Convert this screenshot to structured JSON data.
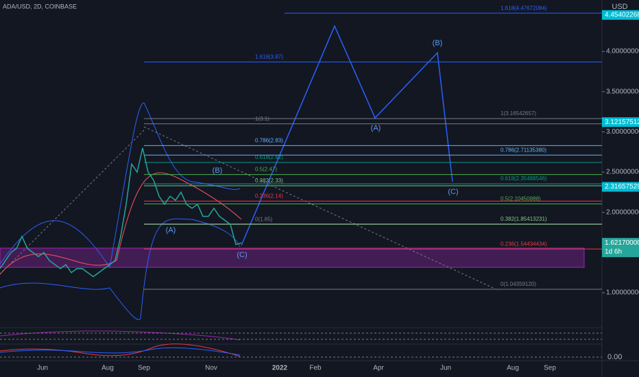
{
  "chart_data": {
    "type": "line",
    "title": "ADA/USD, 2D, COINBASE",
    "currency": "USD",
    "values": [
      1.3,
      1.4,
      1.5,
      1.55,
      1.7,
      1.55,
      1.5,
      1.45,
      1.5,
      1.4,
      1.35,
      1.3,
      1.35,
      1.25,
      1.3,
      1.3,
      1.25,
      1.2,
      1.25,
      1.3,
      1.35,
      1.4,
      1.7,
      2.1,
      2.6,
      2.5,
      2.8,
      2.5,
      2.4,
      2.2,
      2.1,
      2.2,
      2.15,
      2.25,
      2.1,
      2.05,
      2.1,
      1.95,
      1.95,
      2.05,
      1.95,
      1.9,
      1.85,
      1.6,
      1.62
    ],
    "color": "#26a69a",
    "ylim": [
      0.6,
      4.64
    ],
    "yticks": [
      {
        "value": 4,
        "label": "4.00000000"
      },
      {
        "value": 3.5,
        "label": "3.50000000"
      },
      {
        "value": 3,
        "label": "3.00000000"
      },
      {
        "value": 2.5,
        "label": "2.50000000"
      },
      {
        "value": 2,
        "label": "2.00000000"
      },
      {
        "value": 1,
        "label": "1.00000000"
      }
    ],
    "xticks": [
      "Jun",
      "Aug",
      "Sep",
      "Nov",
      "2022",
      "Feb",
      "Apr",
      "Jun",
      "Aug",
      "Sep"
    ],
    "price_tags": [
      {
        "value": 4.45402268,
        "color": "#00bcd4"
      },
      {
        "value": 3.12157512,
        "color": "#00bcd4"
      },
      {
        "value": 2.31657529,
        "color": "#00bcd4"
      },
      {
        "value": {
          "value": 1.6217,
          "label": "1.62170000"
        },
        "countdown": "1d 6h",
        "color": "#26a69a"
      }
    ],
    "fib_left": [
      {
        "label": "1.618(3.87)",
        "value": 3.87,
        "color": "#2962ff"
      },
      {
        "label": "1(3.1)",
        "value": 3.1,
        "color": "#787b86"
      },
      {
        "label": "0.786(2.83)",
        "value": 2.83,
        "color": "#64b5f6"
      },
      {
        "label": "0.618(2.62)",
        "value": 2.62,
        "color": "#089981"
      },
      {
        "label": "0.5(2.47)",
        "value": 2.47,
        "color": "#4caf50"
      },
      {
        "label": "0.382(2.33)",
        "value": 2.33,
        "color": "#81c784"
      },
      {
        "label": "0.236(2.14)",
        "value": 2.14,
        "color": "#f23645"
      },
      {
        "label": "0(1.85)",
        "value": 1.85,
        "color": "#787b86"
      }
    ],
    "fib_right": [
      {
        "label": "1.618(4.47672084)",
        "value": 4.47672084,
        "color": "#2962ff"
      },
      {
        "label": "1(3.16542657)",
        "value": 3.16542657,
        "color": "#787b86"
      },
      {
        "label": "0.786(2.71135380)",
        "value": 2.7113538,
        "color": "#64b5f6"
      },
      {
        "label": "0.618(2.35488546)",
        "value": 2.35488546,
        "color": "#089981"
      },
      {
        "label": "0.5(2.10450888)",
        "value": 2.10450888,
        "color": "#4caf50"
      },
      {
        "label": "0.382(1.85413231)",
        "value": 1.85413231,
        "color": "#81c784"
      },
      {
        "label": "0.236(1.54434434)",
        "value": 1.54434434,
        "color": "#f23645"
      },
      {
        "label": "0(1.04359120)",
        "value": 1.0435912,
        "color": "#787b86"
      }
    ],
    "wave_labels": [
      "(A)",
      "(B)",
      "(C)",
      "(A)",
      "(B)",
      "(C)"
    ],
    "osc_label": "0.00"
  }
}
